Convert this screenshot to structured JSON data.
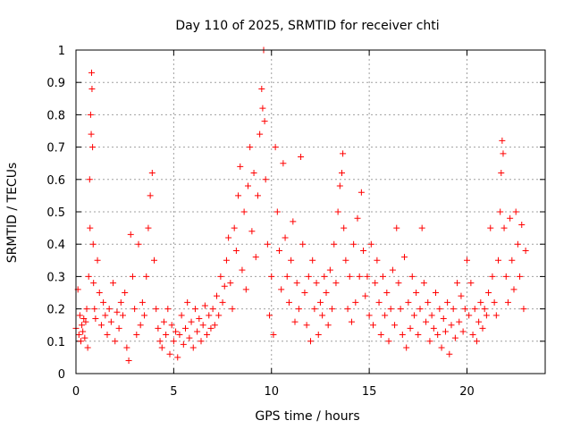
{
  "chart_data": {
    "type": "scatter",
    "title": "Day 110 of 2025, SRMTID for receiver chti",
    "xlabel": "GPS time / hours",
    "ylabel": "SRMTID / TECUs",
    "xlim": [
      0,
      24
    ],
    "ylim": [
      0,
      1
    ],
    "xticks": [
      0,
      5,
      10,
      15,
      20
    ],
    "xtick_labels": [
      "0",
      "5",
      "10",
      "15",
      "20"
    ],
    "yticks": [
      0,
      0.1,
      0.2,
      0.3,
      0.4,
      0.5,
      0.6,
      0.7,
      0.8,
      0.9,
      1
    ],
    "ytick_labels": [
      "0",
      "0.1",
      "0.2",
      "0.3",
      "0.4",
      "0.5",
      "0.6",
      "0.7",
      "0.8",
      "0.9",
      "1"
    ],
    "grid": true,
    "marker": "+",
    "color": "#ff0000",
    "series": [
      {
        "name": "SRMTID",
        "points": [
          [
            0.0,
            0.14
          ],
          [
            0.1,
            0.26
          ],
          [
            0.15,
            0.12
          ],
          [
            0.2,
            0.18
          ],
          [
            0.25,
            0.1
          ],
          [
            0.3,
            0.15
          ],
          [
            0.35,
            0.13
          ],
          [
            0.4,
            0.17
          ],
          [
            0.45,
            0.11
          ],
          [
            0.5,
            0.16
          ],
          [
            0.55,
            0.2
          ],
          [
            0.6,
            0.08
          ],
          [
            0.65,
            0.3
          ],
          [
            0.7,
            0.6
          ],
          [
            0.72,
            0.45
          ],
          [
            0.75,
            0.8
          ],
          [
            0.78,
            0.74
          ],
          [
            0.8,
            0.93
          ],
          [
            0.82,
            0.88
          ],
          [
            0.85,
            0.7
          ],
          [
            0.88,
            0.4
          ],
          [
            0.9,
            0.28
          ],
          [
            0.95,
            0.2
          ],
          [
            1.0,
            0.17
          ],
          [
            1.1,
            0.35
          ],
          [
            1.2,
            0.25
          ],
          [
            1.3,
            0.15
          ],
          [
            1.4,
            0.22
          ],
          [
            1.5,
            0.18
          ],
          [
            1.6,
            0.12
          ],
          [
            1.7,
            0.2
          ],
          [
            1.8,
            0.16
          ],
          [
            1.9,
            0.28
          ],
          [
            2.0,
            0.1
          ],
          [
            2.1,
            0.19
          ],
          [
            2.2,
            0.14
          ],
          [
            2.3,
            0.22
          ],
          [
            2.4,
            0.18
          ],
          [
            2.5,
            0.25
          ],
          [
            2.6,
            0.08
          ],
          [
            2.7,
            0.04
          ],
          [
            2.8,
            0.43
          ],
          [
            2.9,
            0.3
          ],
          [
            3.0,
            0.2
          ],
          [
            3.1,
            0.12
          ],
          [
            3.2,
            0.4
          ],
          [
            3.3,
            0.15
          ],
          [
            3.4,
            0.22
          ],
          [
            3.5,
            0.18
          ],
          [
            3.6,
            0.3
          ],
          [
            3.7,
            0.45
          ],
          [
            3.8,
            0.55
          ],
          [
            3.9,
            0.62
          ],
          [
            4.0,
            0.35
          ],
          [
            4.1,
            0.2
          ],
          [
            4.2,
            0.14
          ],
          [
            4.3,
            0.1
          ],
          [
            4.4,
            0.08
          ],
          [
            4.5,
            0.16
          ],
          [
            4.6,
            0.12
          ],
          [
            4.7,
            0.2
          ],
          [
            4.8,
            0.06
          ],
          [
            4.9,
            0.15
          ],
          [
            5.0,
            0.1
          ],
          [
            5.1,
            0.13
          ],
          [
            5.2,
            0.05
          ],
          [
            5.3,
            0.12
          ],
          [
            5.4,
            0.18
          ],
          [
            5.5,
            0.09
          ],
          [
            5.6,
            0.14
          ],
          [
            5.7,
            0.22
          ],
          [
            5.8,
            0.11
          ],
          [
            5.9,
            0.16
          ],
          [
            6.0,
            0.08
          ],
          [
            6.1,
            0.2
          ],
          [
            6.2,
            0.13
          ],
          [
            6.3,
            0.17
          ],
          [
            6.4,
            0.1
          ],
          [
            6.5,
            0.15
          ],
          [
            6.6,
            0.21
          ],
          [
            6.7,
            0.12
          ],
          [
            6.8,
            0.18
          ],
          [
            6.9,
            0.14
          ],
          [
            7.0,
            0.2
          ],
          [
            7.1,
            0.15
          ],
          [
            7.2,
            0.24
          ],
          [
            7.3,
            0.18
          ],
          [
            7.4,
            0.3
          ],
          [
            7.5,
            0.22
          ],
          [
            7.6,
            0.27
          ],
          [
            7.7,
            0.35
          ],
          [
            7.8,
            0.42
          ],
          [
            7.9,
            0.28
          ],
          [
            8.0,
            0.2
          ],
          [
            8.1,
            0.45
          ],
          [
            8.2,
            0.38
          ],
          [
            8.3,
            0.55
          ],
          [
            8.4,
            0.64
          ],
          [
            8.5,
            0.32
          ],
          [
            8.6,
            0.5
          ],
          [
            8.7,
            0.26
          ],
          [
            8.8,
            0.58
          ],
          [
            8.9,
            0.7
          ],
          [
            9.0,
            0.44
          ],
          [
            9.1,
            0.62
          ],
          [
            9.2,
            0.36
          ],
          [
            9.3,
            0.55
          ],
          [
            9.4,
            0.74
          ],
          [
            9.5,
            0.88
          ],
          [
            9.55,
            0.82
          ],
          [
            9.6,
            1.0
          ],
          [
            9.65,
            0.78
          ],
          [
            9.7,
            0.6
          ],
          [
            9.8,
            0.4
          ],
          [
            9.9,
            0.18
          ],
          [
            10.0,
            0.3
          ],
          [
            10.1,
            0.12
          ],
          [
            10.2,
            0.7
          ],
          [
            10.3,
            0.5
          ],
          [
            10.4,
            0.38
          ],
          [
            10.5,
            0.26
          ],
          [
            10.6,
            0.65
          ],
          [
            10.7,
            0.42
          ],
          [
            10.8,
            0.3
          ],
          [
            10.9,
            0.22
          ],
          [
            11.0,
            0.35
          ],
          [
            11.1,
            0.47
          ],
          [
            11.2,
            0.16
          ],
          [
            11.3,
            0.28
          ],
          [
            11.4,
            0.2
          ],
          [
            11.5,
            0.67
          ],
          [
            11.6,
            0.4
          ],
          [
            11.7,
            0.25
          ],
          [
            11.8,
            0.15
          ],
          [
            11.9,
            0.3
          ],
          [
            12.0,
            0.1
          ],
          [
            12.1,
            0.35
          ],
          [
            12.2,
            0.2
          ],
          [
            12.3,
            0.28
          ],
          [
            12.4,
            0.12
          ],
          [
            12.5,
            0.22
          ],
          [
            12.6,
            0.18
          ],
          [
            12.7,
            0.3
          ],
          [
            12.8,
            0.25
          ],
          [
            12.9,
            0.15
          ],
          [
            13.0,
            0.32
          ],
          [
            13.1,
            0.2
          ],
          [
            13.2,
            0.4
          ],
          [
            13.3,
            0.28
          ],
          [
            13.4,
            0.5
          ],
          [
            13.5,
            0.58
          ],
          [
            13.6,
            0.62
          ],
          [
            13.65,
            0.68
          ],
          [
            13.7,
            0.45
          ],
          [
            13.8,
            0.35
          ],
          [
            13.9,
            0.2
          ],
          [
            14.0,
            0.3
          ],
          [
            14.1,
            0.16
          ],
          [
            14.2,
            0.4
          ],
          [
            14.3,
            0.22
          ],
          [
            14.4,
            0.48
          ],
          [
            14.5,
            0.3
          ],
          [
            14.6,
            0.56
          ],
          [
            14.7,
            0.38
          ],
          [
            14.8,
            0.24
          ],
          [
            14.9,
            0.3
          ],
          [
            15.0,
            0.18
          ],
          [
            15.1,
            0.4
          ],
          [
            15.2,
            0.15
          ],
          [
            15.3,
            0.28
          ],
          [
            15.4,
            0.35
          ],
          [
            15.5,
            0.22
          ],
          [
            15.6,
            0.12
          ],
          [
            15.7,
            0.3
          ],
          [
            15.8,
            0.18
          ],
          [
            15.9,
            0.25
          ],
          [
            16.0,
            0.1
          ],
          [
            16.1,
            0.2
          ],
          [
            16.2,
            0.32
          ],
          [
            16.3,
            0.15
          ],
          [
            16.4,
            0.45
          ],
          [
            16.5,
            0.28
          ],
          [
            16.6,
            0.2
          ],
          [
            16.7,
            0.12
          ],
          [
            16.8,
            0.36
          ],
          [
            16.9,
            0.08
          ],
          [
            17.0,
            0.22
          ],
          [
            17.1,
            0.14
          ],
          [
            17.2,
            0.3
          ],
          [
            17.3,
            0.18
          ],
          [
            17.4,
            0.25
          ],
          [
            17.5,
            0.12
          ],
          [
            17.6,
            0.2
          ],
          [
            17.7,
            0.45
          ],
          [
            17.8,
            0.28
          ],
          [
            17.9,
            0.16
          ],
          [
            18.0,
            0.22
          ],
          [
            18.1,
            0.1
          ],
          [
            18.2,
            0.18
          ],
          [
            18.3,
            0.14
          ],
          [
            18.4,
            0.25
          ],
          [
            18.5,
            0.12
          ],
          [
            18.6,
            0.2
          ],
          [
            18.7,
            0.08
          ],
          [
            18.8,
            0.17
          ],
          [
            18.9,
            0.13
          ],
          [
            19.0,
            0.22
          ],
          [
            19.1,
            0.06
          ],
          [
            19.2,
            0.15
          ],
          [
            19.3,
            0.2
          ],
          [
            19.4,
            0.11
          ],
          [
            19.5,
            0.28
          ],
          [
            19.6,
            0.16
          ],
          [
            19.7,
            0.24
          ],
          [
            19.8,
            0.13
          ],
          [
            19.9,
            0.2
          ],
          [
            20.0,
            0.35
          ],
          [
            20.1,
            0.18
          ],
          [
            20.2,
            0.28
          ],
          [
            20.3,
            0.12
          ],
          [
            20.4,
            0.2
          ],
          [
            20.5,
            0.1
          ],
          [
            20.6,
            0.16
          ],
          [
            20.7,
            0.22
          ],
          [
            20.8,
            0.14
          ],
          [
            20.9,
            0.2
          ],
          [
            21.0,
            0.18
          ],
          [
            21.1,
            0.25
          ],
          [
            21.2,
            0.45
          ],
          [
            21.3,
            0.3
          ],
          [
            21.4,
            0.22
          ],
          [
            21.5,
            0.18
          ],
          [
            21.6,
            0.35
          ],
          [
            21.7,
            0.5
          ],
          [
            21.75,
            0.62
          ],
          [
            21.8,
            0.72
          ],
          [
            21.85,
            0.68
          ],
          [
            21.9,
            0.45
          ],
          [
            22.0,
            0.3
          ],
          [
            22.1,
            0.22
          ],
          [
            22.2,
            0.48
          ],
          [
            22.3,
            0.35
          ],
          [
            22.4,
            0.26
          ],
          [
            22.5,
            0.5
          ],
          [
            22.6,
            0.4
          ],
          [
            22.7,
            0.3
          ],
          [
            22.8,
            0.46
          ],
          [
            22.9,
            0.2
          ],
          [
            23.0,
            0.38
          ]
        ]
      }
    ]
  }
}
